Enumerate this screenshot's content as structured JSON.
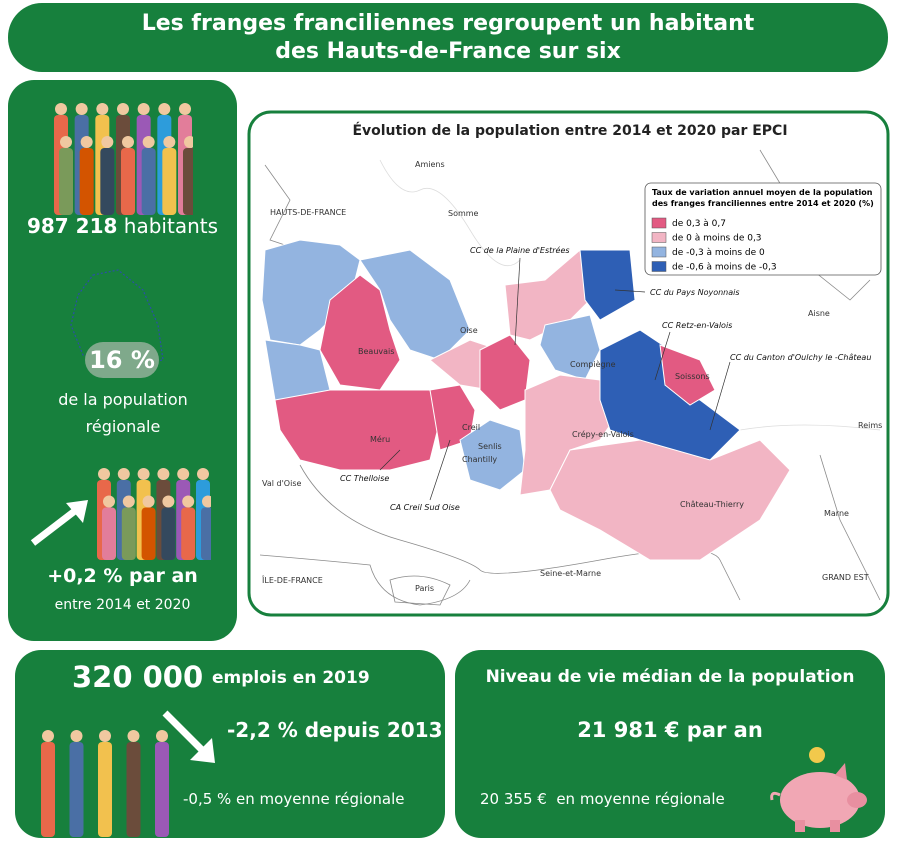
{
  "header": {
    "title_lines": [
      "Les franges franciliennes regroupent un habitant",
      "des Hauts-de-France sur six"
    ]
  },
  "population": {
    "count": "987 218",
    "unit": "habitants",
    "share": "16 %",
    "share_caption": "de la population régionale",
    "growth": "+0,2 % par an",
    "growth_period": "entre 2014 et 2020"
  },
  "map": {
    "title": "Évolution de la population entre 2014 et 2020 par EPCI",
    "legend": {
      "title_lines": [
        "Taux de variation annuel moyen de la population",
        "des franges franciliennes entre 2014 et 2020 (%)"
      ],
      "items": [
        {
          "label": "de 0,3 à 0,7",
          "color": "#e25a82"
        },
        {
          "label": "de 0 à moins de 0,3",
          "color": "#f2b5c4"
        },
        {
          "label": "de -0,3 à moins de 0",
          "color": "#93b4e0"
        },
        {
          "label": "de -0,6 à moins de -0,3",
          "color": "#2e5fb5"
        }
      ]
    },
    "places": [
      "Amiens",
      "HAUTS-DE-FRANCE",
      "Somme",
      "Oise",
      "Aisne",
      "Beauvais",
      "Compiègne",
      "Soissons",
      "Reims",
      "Creil",
      "Senlis",
      "Chantilly",
      "Méru",
      "Crépy-en-Valois",
      "Château-Thierry",
      "Val d'Oise",
      "Marne",
      "ÎLE-DE-FRANCE",
      "Paris",
      "Seine-et-Marne",
      "GRAND EST"
    ],
    "callouts": [
      "CC de la Plaine d'Estrées",
      "CC du Pays Noyonnais",
      "CC Retz-en-Valois",
      "CC du Canton d'Oulchy le -Château",
      "CC Thelloise",
      "CA Creil Sud Oise"
    ]
  },
  "jobs": {
    "count": "320 000",
    "caption": "emplois en 2019",
    "change": "-2,2 % depuis 2013",
    "regional": "-0,5 % en moyenne régionale"
  },
  "income": {
    "title": "Niveau de vie médian de la population",
    "value": "21 981 € par an",
    "regional": "20 355 €  en moyenne régionale"
  }
}
